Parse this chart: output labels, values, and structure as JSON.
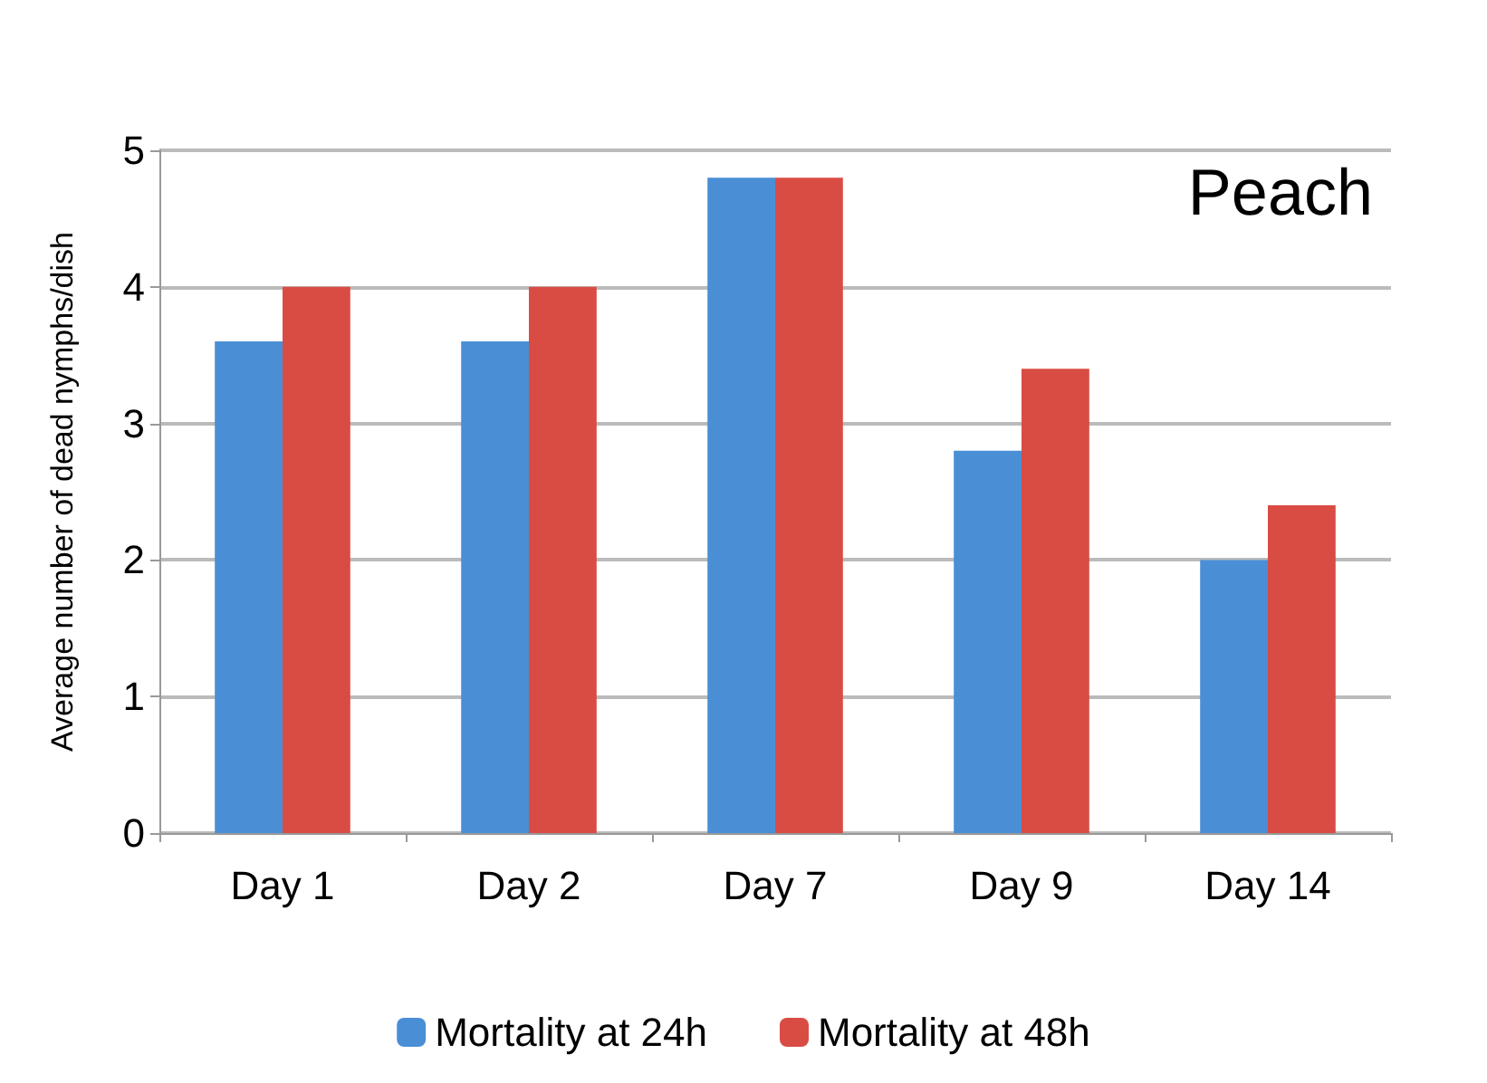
{
  "chart_data": {
    "type": "bar",
    "title": "Peach",
    "ylabel": "Average number of dead nymphs/dish",
    "categories": [
      "Day 1",
      "Day 2",
      "Day 7",
      "Day 9",
      "Day 14"
    ],
    "series": [
      {
        "name": "Mortality at 24h",
        "color": "#4a8fd6",
        "values": [
          3.6,
          3.6,
          4.8,
          2.8,
          2.0
        ]
      },
      {
        "name": "Mortality at 48h",
        "color": "#d94c43",
        "values": [
          4.0,
          4.0,
          4.8,
          3.4,
          2.4
        ]
      }
    ],
    "ylim": [
      0,
      5
    ],
    "yticks": [
      0,
      1,
      2,
      3,
      4,
      5
    ],
    "grid": "y",
    "legend": "bottom"
  }
}
